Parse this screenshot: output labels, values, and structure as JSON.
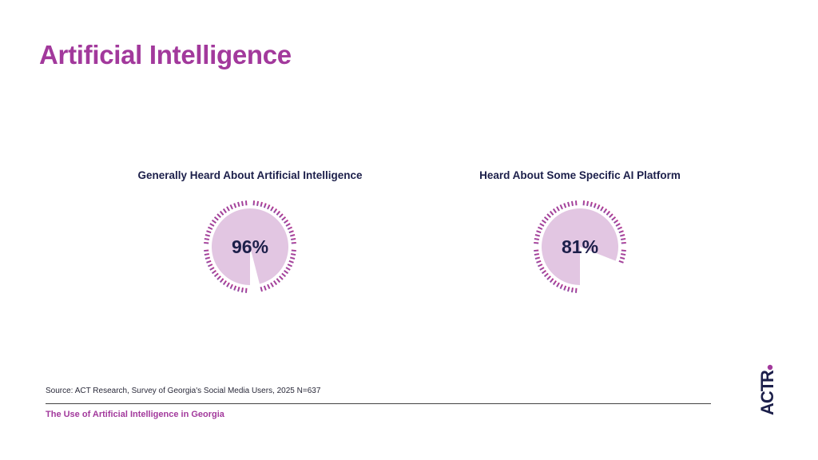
{
  "title": "Artificial Intelligence",
  "chart_data": [
    {
      "type": "gauge",
      "title": "Generally Heard About Artificial Intelligence",
      "value": 96,
      "max": 100,
      "label": "96%"
    },
    {
      "type": "gauge",
      "title": "Heard About Some Specific AI Platform",
      "value": 81,
      "max": 100,
      "label": "81%"
    }
  ],
  "colors": {
    "accent": "#a2399c",
    "fill": "#e2c6e2",
    "text": "#1c1f4a",
    "tick_start": "#8e4fa6",
    "tick_end": "#b8368f"
  },
  "source": "Source: ACT Research, Survey of Georgia's Social Media Users, 2025 N=637",
  "footer": "The Use of Artificial Intelligence in Georgia",
  "logo": {
    "text": "ACT R."
  }
}
